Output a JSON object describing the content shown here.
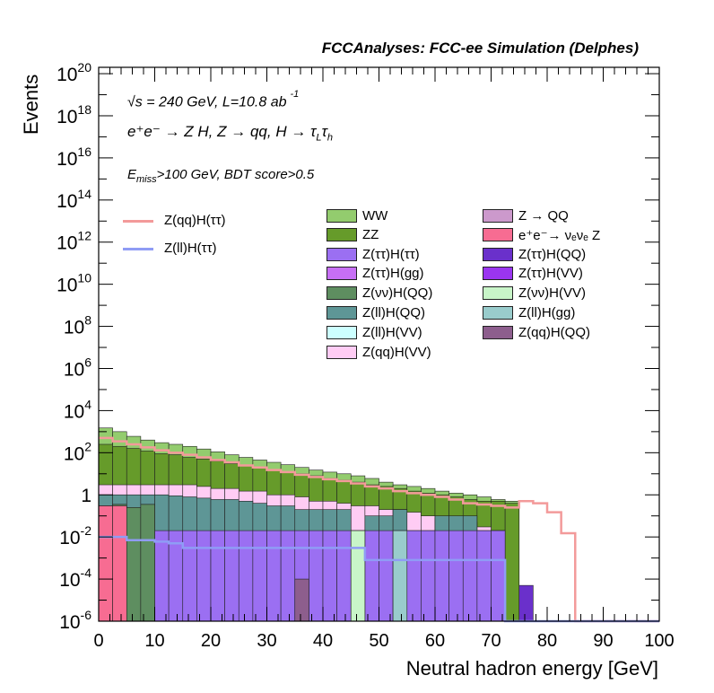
{
  "header": {
    "title": "FCCAnalyses: FCC-ee Simulation (Delphes)",
    "sqrt_s_label": "s = 240 GeV, L=10.8 ab",
    "lumi_exponent": "-1",
    "process_label": "e⁺e⁻ → Z H, Z → qq, H → τ",
    "process_sub_L": "L",
    "process_tau2": "τ",
    "process_sub_h": "h",
    "selection_E": "E",
    "selection_sub": "miss",
    "selection_rest": ">100 GeV, BDT score>0.5"
  },
  "chart_data": {
    "type": "bar",
    "stacked": true,
    "log_y": true,
    "xlabel": "Neutral hadron energy [GeV]",
    "ylabel": "Events",
    "xlim": [
      0,
      100
    ],
    "ylim": [
      1e-06,
      2e+20
    ],
    "bin_width": 2.5,
    "x_ticks": [
      "0",
      "10",
      "20",
      "30",
      "40",
      "50",
      "60",
      "70",
      "80",
      "90",
      "100"
    ],
    "y_ticks": [
      {
        "base": "10",
        "exp": "-6",
        "value": 1e-06
      },
      {
        "base": "10",
        "exp": "-4",
        "value": 0.0001
      },
      {
        "base": "10",
        "exp": "-2",
        "value": 0.01
      },
      {
        "base": "1",
        "exp": "",
        "value": 1
      },
      {
        "base": "10",
        "exp": "2",
        "value": 100.0
      },
      {
        "base": "10",
        "exp": "4",
        "value": 10000.0
      },
      {
        "base": "10",
        "exp": "6",
        "value": 1000000.0
      },
      {
        "base": "10",
        "exp": "8",
        "value": 100000000.0
      },
      {
        "base": "10",
        "exp": "10",
        "value": 10000000000.0
      },
      {
        "base": "10",
        "exp": "12",
        "value": 1000000000000.0
      },
      {
        "base": "10",
        "exp": "14",
        "value": 100000000000000.0
      },
      {
        "base": "10",
        "exp": "16",
        "value": 1e+16
      },
      {
        "base": "10",
        "exp": "18",
        "value": 1e+18
      },
      {
        "base": "10",
        "exp": "20",
        "value": 1e+20
      }
    ],
    "stack_levels": [
      {
        "name": "Z(νν)H(QQ)",
        "color": "#5e8e60",
        "values": [
          0.3,
          0.35,
          0.25,
          0.35,
          0,
          0,
          0,
          0,
          0,
          0,
          0,
          0,
          0,
          0,
          0,
          0,
          0,
          0,
          0,
          0,
          0,
          0,
          0,
          0,
          0,
          0,
          0,
          0,
          0,
          0,
          0,
          0,
          0,
          0,
          0,
          0,
          0,
          0,
          0,
          0
        ]
      },
      {
        "name": "Z(ττ)H(ττ)",
        "color": "#9b6ff2",
        "values": [
          0.3,
          0.35,
          0.25,
          0.35,
          0.02,
          0.02,
          0.02,
          0.02,
          0.02,
          0.02,
          0.02,
          0.02,
          0.02,
          0.02,
          0.02,
          0.02,
          0.02,
          0.02,
          0.02,
          0.02,
          0.02,
          0.02,
          0.02,
          0.02,
          0.02,
          0.02,
          0.02,
          0.02,
          0.02,
          0,
          0,
          0,
          0,
          0,
          0,
          0,
          0,
          0,
          0,
          0
        ]
      },
      {
        "name": "Z(ll)H(QQ)",
        "color": "#5e9696",
        "values": [
          1,
          1,
          1,
          1,
          1,
          0.9,
          0.8,
          0.7,
          0.6,
          0.6,
          0.5,
          0.4,
          0.3,
          0.3,
          0.2,
          0.2,
          0.2,
          0.2,
          0.02,
          0.1,
          0.1,
          0.2,
          0.02,
          0.02,
          0.1,
          0.1,
          0.1,
          0.02,
          0.02,
          0,
          0,
          0,
          0,
          0,
          0,
          0,
          0,
          0,
          0,
          0
        ]
      },
      {
        "name": "Z(qq)H(VV)",
        "color": "#ffccf4",
        "values": [
          3,
          3,
          3,
          3,
          3,
          3,
          3,
          2.5,
          2,
          2,
          1.5,
          1.5,
          1,
          1,
          0.8,
          0.5,
          0.5,
          0.4,
          0.3,
          0.3,
          0.2,
          0.2,
          0.15,
          0.1,
          0.08,
          0.06,
          0.05,
          0.03,
          0.02,
          0,
          0,
          0,
          0,
          0,
          0,
          0,
          0,
          0,
          0,
          0
        ]
      },
      {
        "name": "ZZ",
        "color": "#669b2a",
        "values": [
          250,
          200,
          160,
          120,
          90,
          80,
          60,
          50,
          40,
          30,
          25,
          20,
          15,
          12,
          10,
          8,
          6,
          5,
          4,
          3,
          2.5,
          2,
          1.5,
          1.2,
          1,
          0.8,
          0.6,
          0.5,
          0.5,
          0.4,
          0,
          0,
          0,
          0,
          0,
          0,
          0,
          0,
          0,
          0
        ]
      },
      {
        "name": "WW",
        "color": "#93cc6e",
        "values": [
          1500,
          1000,
          600,
          400,
          300,
          250,
          200,
          150,
          110,
          80,
          60,
          45,
          35,
          27,
          20,
          15,
          12,
          10,
          8,
          6,
          4,
          3,
          2.5,
          2,
          1.5,
          1.2,
          1,
          0.8,
          0.6,
          0.5,
          0,
          0,
          0,
          0,
          0,
          0,
          0,
          0,
          0,
          0
        ]
      }
    ],
    "series_lines": [
      {
        "name": "Z(qq)H(ττ)",
        "color": "#f39a9a",
        "values": [
          500,
          350,
          250,
          180,
          130,
          100,
          80,
          60,
          45,
          35,
          25,
          20,
          15,
          12,
          9,
          7,
          5.5,
          4.5,
          3.5,
          2.5,
          2,
          1.5,
          1.2,
          1,
          0.8,
          0.6,
          0.4,
          0.35,
          0.3,
          0.25,
          0.5,
          0.4,
          0.15,
          0.015,
          0,
          0,
          0,
          0,
          0,
          0
        ]
      },
      {
        "name": "Z(ll)H(ττ)",
        "color": "#8f9cf5",
        "values": [
          0.01,
          0.01,
          0.007,
          0.007,
          0.006,
          0.005,
          0.003,
          0.003,
          0.003,
          0.003,
          0.003,
          0.003,
          0.003,
          0.003,
          0.003,
          0.003,
          0.003,
          0.003,
          0.003,
          0.0008,
          0.0008,
          0.0008,
          0.0008,
          0.0008,
          0.0008,
          0.0008,
          0.0008,
          0.0008,
          0.0008,
          0,
          0,
          0,
          0,
          0,
          0,
          0,
          0,
          0,
          0,
          0
        ]
      }
    ],
    "extra_bars": [
      {
        "name": "e⁺e⁻→ νₑνₑ Z",
        "color": "#f76c92",
        "bin": 0,
        "value": 0.3
      },
      {
        "name": "e⁺e⁻→ νₑνₑ Z",
        "color": "#f76c92",
        "bin": 1,
        "value": 0.3
      },
      {
        "name": "Z(qq)H(QQ)",
        "color": "#8d5e8d",
        "bin": 14,
        "value": 0.0001
      },
      {
        "name": "Z(ττ)H(QQ)",
        "color": "#6a30cb",
        "bin": 30,
        "value": 5e-05
      },
      {
        "name": "Z(νν)H(VV)",
        "color": "#c8f5c8",
        "bin": 18,
        "value": 0.02
      },
      {
        "name": "Z(ll)H(gg)",
        "color": "#99cccc",
        "bin": 21,
        "value": 0.02
      }
    ],
    "legend": [
      {
        "name": "Z(qq)H(ττ)",
        "kind": "line",
        "color": "#f39a9a"
      },
      {
        "name": "Z(ll)H(ττ)",
        "kind": "line",
        "color": "#8f9cf5"
      },
      {
        "name": "WW",
        "kind": "fill",
        "color": "#93cc6e"
      },
      {
        "name": "ZZ",
        "kind": "fill",
        "color": "#669b2a"
      },
      {
        "name": "Z(ττ)H(ττ)",
        "kind": "fill",
        "color": "#9b6ff2"
      },
      {
        "name": "Z(ττ)H(gg)",
        "kind": "fill",
        "color": "#c76ff5"
      },
      {
        "name": "Z(νν)H(QQ)",
        "kind": "fill",
        "color": "#5e8e60"
      },
      {
        "name": "Z(ll)H(QQ)",
        "kind": "fill",
        "color": "#5e9696"
      },
      {
        "name": "Z(ll)H(VV)",
        "kind": "fill",
        "color": "#ccffff"
      },
      {
        "name": "Z(qq)H(VV)",
        "kind": "fill",
        "color": "#ffccf4"
      },
      {
        "name": "Z → QQ",
        "kind": "fill",
        "color": "#cc99cc"
      },
      {
        "name": "e⁺e⁻→ νₑνₑ Z",
        "kind": "fill",
        "color": "#f76c92"
      },
      {
        "name": "Z(ττ)H(QQ)",
        "kind": "fill",
        "color": "#6a30cb"
      },
      {
        "name": "Z(ττ)H(VV)",
        "kind": "fill",
        "color": "#9a35f0"
      },
      {
        "name": "Z(νν)H(VV)",
        "kind": "fill",
        "color": "#c8f5c8"
      },
      {
        "name": "Z(ll)H(gg)",
        "kind": "fill",
        "color": "#99cccc"
      },
      {
        "name": "Z(qq)H(QQ)",
        "kind": "fill",
        "color": "#8d5e8d"
      }
    ]
  }
}
